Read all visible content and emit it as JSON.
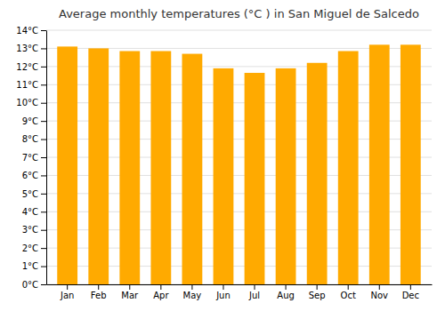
{
  "chart_data": {
    "type": "bar",
    "title": "Average monthly temperatures (°C ) in San Miguel de Salcedo",
    "categories": [
      "Jan",
      "Feb",
      "Mar",
      "Apr",
      "May",
      "Jun",
      "Jul",
      "Aug",
      "Sep",
      "Oct",
      "Nov",
      "Dec"
    ],
    "values": [
      13.1,
      13.0,
      12.85,
      12.85,
      12.7,
      11.9,
      11.65,
      11.9,
      12.2,
      12.85,
      13.2,
      13.2
    ],
    "color": "#FFAA00",
    "ylim": [
      0,
      14
    ],
    "yticks": [
      {
        "value": 0,
        "label": "0°C"
      },
      {
        "value": 1,
        "label": "1°C"
      },
      {
        "value": 2,
        "label": "2°C"
      },
      {
        "value": 3,
        "label": "3°C"
      },
      {
        "value": 4,
        "label": "4°C"
      },
      {
        "value": 5,
        "label": "5°C"
      },
      {
        "value": 6,
        "label": "6°C"
      },
      {
        "value": 7,
        "label": "7°C"
      },
      {
        "value": 8,
        "label": "8°C"
      },
      {
        "value": 9,
        "label": "9°C"
      },
      {
        "value": 10,
        "label": "10°C"
      },
      {
        "value": 11,
        "label": "11°C"
      },
      {
        "value": 12,
        "label": "12°C"
      },
      {
        "value": 13,
        "label": "13°C"
      },
      {
        "value": 14,
        "label": "14°C"
      }
    ],
    "grid": true
  }
}
